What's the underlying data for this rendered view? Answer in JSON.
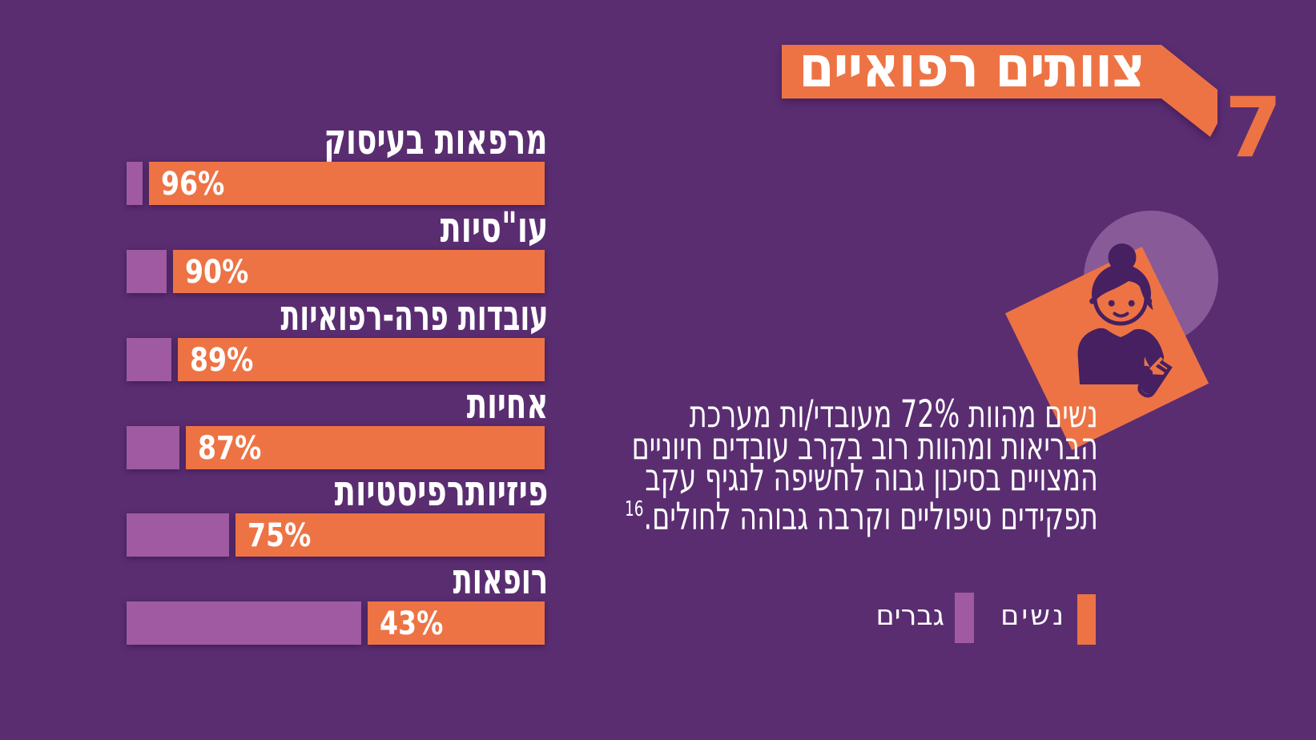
{
  "colors": {
    "background": "#5a2d71",
    "orange": "#ed7345",
    "men_purple": "#9f5aa1",
    "circle_purple": "#885a98",
    "icon_dark": "#462060",
    "text_white": "#ffffff"
  },
  "header": {
    "title": "צוותים רפואיים",
    "page_number": "7"
  },
  "chart_data": {
    "type": "bar",
    "orientation": "horizontal",
    "title": "",
    "xlabel": "",
    "ylabel": "",
    "xlim": [
      0,
      100
    ],
    "grid": false,
    "legend_position": "bottom-right",
    "categories": [
      "מרפאות בעיסוק",
      "עו\"סיות",
      "עובדות פרה-רפואיות",
      "אחיות",
      "פיזיותרפיסטיות",
      "רופאות"
    ],
    "series": [
      {
        "name": "נשים",
        "color": "#ed7345",
        "values": [
          96,
          90,
          89,
          87,
          75,
          43
        ]
      },
      {
        "name": "גברים",
        "color": "#9f5aa1",
        "values": [
          4,
          10,
          11,
          13,
          25,
          57
        ]
      }
    ],
    "value_labels": [
      "96%",
      "90%",
      "89%",
      "87%",
      "75%",
      "43%"
    ]
  },
  "note": {
    "lines": [
      "נשים מהוות 72% מעובדי/ות מערכת",
      "הבריאות ומהוות רוב בקרב עובדים חיוניים",
      "המצויים בסיכון גבוה לחשיפה לנגיף עקב",
      "תפקידים טיפוליים וקרבה גבוהה לחולים."
    ],
    "footnote_marker": "16"
  },
  "legend": {
    "items": [
      {
        "label": "נשים",
        "color": "#ed7345"
      },
      {
        "label": "גברים",
        "color": "#9f5aa1"
      }
    ]
  },
  "illustration": {
    "name": "nurse-with-test-tube"
  }
}
